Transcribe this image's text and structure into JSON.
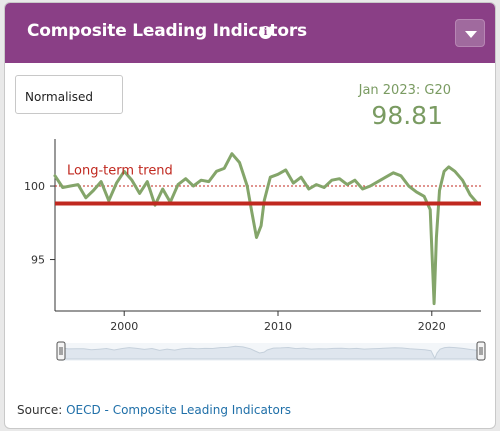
{
  "header": {
    "title": "Composite Leading Indicators",
    "info_icon": "info-circle-icon",
    "menu_icon": "chevron-down-icon"
  },
  "controls": {
    "mode_select": "Normalised"
  },
  "readout": {
    "label": "Jan 2023: G20",
    "value": "98.81"
  },
  "source": {
    "prefix": "Source:",
    "link_text": "OECD - Composite Leading Indicators"
  },
  "colors": {
    "header_bg": "#8a3f86",
    "series": "#84a56a",
    "trend": "#c0281f",
    "grid_dotted": "#c0281f"
  },
  "chart_data": {
    "type": "line",
    "ylabel": "",
    "xlabel": "",
    "x_ticks": [
      2000,
      2010,
      2020
    ],
    "y_ticks": [
      95,
      100
    ],
    "xlim": [
      1995.5,
      2023.2
    ],
    "ylim": [
      91.5,
      103.2
    ],
    "annotation": "Long-term trend",
    "trend_value": 98.81,
    "reference_line": 100,
    "series": [
      {
        "x": [
          1995.5,
          1996.0,
          1996.5,
          1997.0,
          1997.5,
          1998.0,
          1998.5,
          1999.0,
          1999.5,
          2000.0,
          2000.5,
          2001.0,
          2001.5,
          2002.0,
          2002.5,
          2003.0,
          2003.5,
          2004.0,
          2004.5,
          2005.0,
          2005.5,
          2006.0,
          2006.5,
          2007.0,
          2007.5,
          2008.0,
          2008.3,
          2008.6,
          2008.9,
          2009.1,
          2009.5,
          2010.0,
          2010.5,
          2011.0,
          2011.5,
          2012.0,
          2012.5,
          2013.0,
          2013.5,
          2014.0,
          2014.5,
          2015.0,
          2015.5,
          2016.0,
          2016.5,
          2017.0,
          2017.5,
          2018.0,
          2018.5,
          2019.0,
          2019.5,
          2019.9,
          2020.15,
          2020.3,
          2020.5,
          2020.8,
          2021.1,
          2021.5,
          2022.0,
          2022.5,
          2023.0
        ],
        "y": [
          100.7,
          99.9,
          100.0,
          100.1,
          99.2,
          99.7,
          100.3,
          99.0,
          100.2,
          101.0,
          100.4,
          99.5,
          100.3,
          98.7,
          99.8,
          98.9,
          100.1,
          100.5,
          100.0,
          100.4,
          100.3,
          101.0,
          101.2,
          102.2,
          101.6,
          100.0,
          98.2,
          96.5,
          97.3,
          99.0,
          100.6,
          100.8,
          101.1,
          100.2,
          100.6,
          99.8,
          100.1,
          99.9,
          100.4,
          100.5,
          100.1,
          100.4,
          99.8,
          100.0,
          100.3,
          100.6,
          100.9,
          100.7,
          100.0,
          99.6,
          99.3,
          98.4,
          92.0,
          96.5,
          99.7,
          101.0,
          101.3,
          101.0,
          100.4,
          99.4,
          98.8
        ]
      }
    ]
  }
}
